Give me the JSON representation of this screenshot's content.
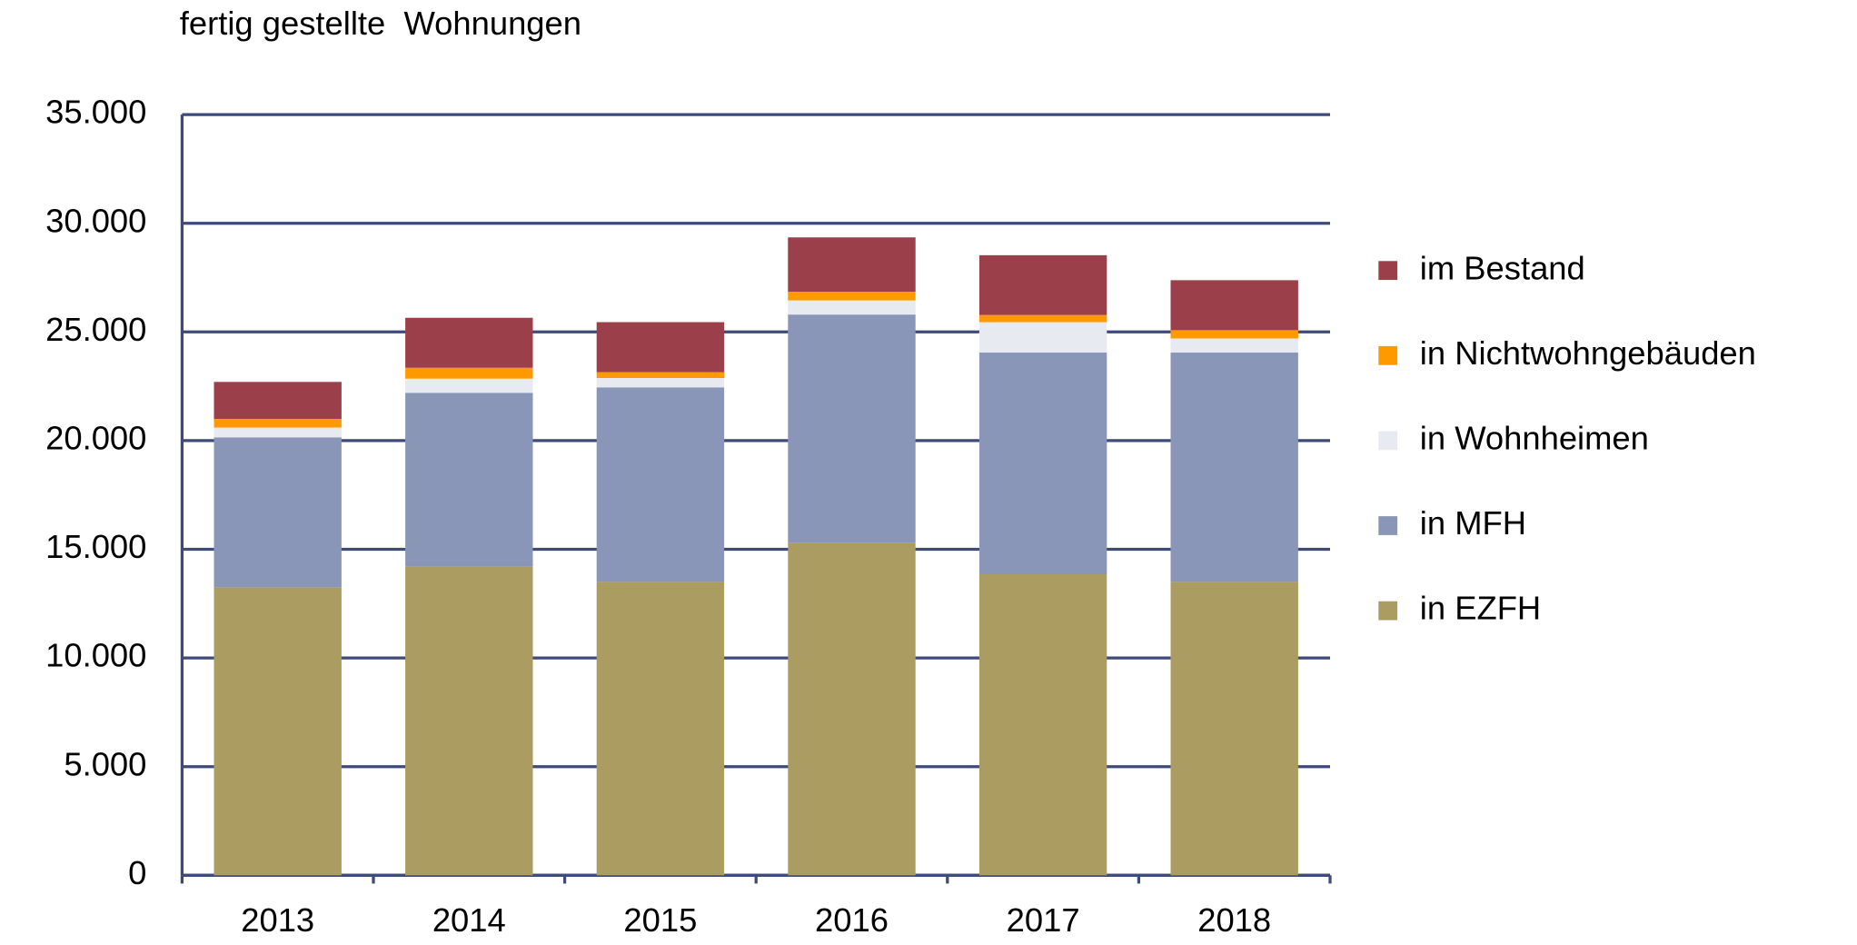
{
  "chart_data": {
    "type": "stacked_bar",
    "title": "fertig gestellte  Wohnungen",
    "categories": [
      "2013",
      "2014",
      "2015",
      "2016",
      "2017",
      "2018"
    ],
    "series": [
      {
        "name": "in EZFH",
        "color": "#ab9c62",
        "values": [
          13250,
          14200,
          13500,
          15300,
          13850,
          13500
        ]
      },
      {
        "name": "in MFH",
        "color": "#8a96b8",
        "values": [
          6900,
          8000,
          8950,
          10500,
          10200,
          10550
        ]
      },
      {
        "name": "in Wohnheimen",
        "color": "#e8eaf2",
        "values": [
          450,
          650,
          430,
          650,
          1400,
          650
        ]
      },
      {
        "name": "in Nichtwohngebäuden",
        "color": "#ff9900",
        "values": [
          400,
          500,
          270,
          400,
          330,
          380
        ]
      },
      {
        "name": "im Bestand",
        "color": "#9b3f4a",
        "values": [
          1700,
          2300,
          2300,
          2500,
          2750,
          2300
        ]
      }
    ],
    "ylim": [
      0,
      35000
    ],
    "yticks": [
      0,
      {
        "value": 5000,
        "label": "5.000"
      },
      {
        "value": 10000,
        "label": "10.000"
      },
      {
        "value": 15000,
        "label": "15.000"
      },
      {
        "value": 20000,
        "label": "20.000"
      },
      {
        "value": 25000,
        "label": "25.000"
      },
      {
        "value": 30000,
        "label": "30.000"
      },
      {
        "value": 35000,
        "label": "35.000"
      }
    ],
    "grid": true,
    "legend": "right"
  }
}
